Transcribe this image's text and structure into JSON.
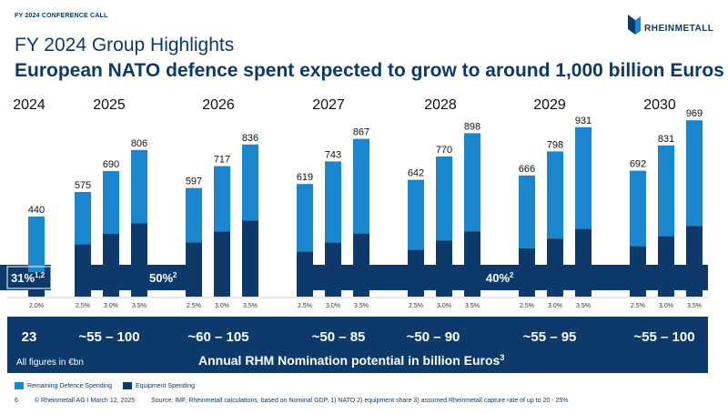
{
  "header": {
    "top_label": "FY 2024 CONFERENCE CALL",
    "logo_text": "RHEINMETALL",
    "title": "FY 2024 Group Highlights",
    "subtitle": "European NATO defence spent expected to grow to around 1,000 billion Euros"
  },
  "colors": {
    "remaining": "#1a86cf",
    "equipment": "#0d3a6b",
    "band": "#0d3a6b"
  },
  "chart_data": {
    "type": "bar",
    "stacked": true,
    "years": [
      "2024",
      "2025",
      "2026",
      "2027",
      "2028",
      "2029",
      "2030"
    ],
    "groups": [
      {
        "year": "2024",
        "rates": [
          "2.0%"
        ],
        "totals": [
          440
        ],
        "equipment": [
          135
        ],
        "nomination": "23"
      },
      {
        "year": "2025",
        "rates": [
          "2.5%",
          "3.0%",
          "3.5%"
        ],
        "totals": [
          575,
          690,
          806
        ],
        "equipment": [
          287,
          345,
          403
        ],
        "nomination": "~55 – 100"
      },
      {
        "year": "2026",
        "rates": [
          "2.5%",
          "3.0%",
          "3.5%"
        ],
        "totals": [
          597,
          717,
          836
        ],
        "equipment": [
          298,
          358,
          418
        ],
        "nomination": "~60 – 105"
      },
      {
        "year": "2027",
        "rates": [
          "2.5%",
          "3.0%",
          "3.5%"
        ],
        "totals": [
          619,
          743,
          867
        ],
        "equipment": [
          247,
          297,
          347
        ],
        "nomination": "~50 – 85"
      },
      {
        "year": "2028",
        "rates": [
          "2.5%",
          "3.0%",
          "3.5%"
        ],
        "totals": [
          642,
          770,
          898
        ],
        "equipment": [
          257,
          308,
          359
        ],
        "nomination": "~50 – 90"
      },
      {
        "year": "2029",
        "rates": [
          "2.5%",
          "3.0%",
          "3.5%"
        ],
        "totals": [
          666,
          798,
          931
        ],
        "equipment": [
          266,
          319,
          372
        ],
        "nomination": "~55 – 95"
      },
      {
        "year": "2030",
        "rates": [
          "2.5%",
          "3.0%",
          "3.5%"
        ],
        "totals": [
          692,
          831,
          969
        ],
        "equipment": [
          277,
          332,
          388
        ],
        "nomination": "~55 – 100"
      }
    ],
    "equipment_share_labels": [
      {
        "text": "31%",
        "sup": "1,2"
      },
      {
        "text": "50%",
        "sup": "2"
      },
      {
        "text": "40%",
        "sup": "2"
      }
    ],
    "series": [
      {
        "name": "Remaining Defence Spending"
      },
      {
        "name": "Equipment Spending"
      }
    ],
    "band_note": "All figures in €bn",
    "band_title": "Annual RHM Nomination potential in billion Euros",
    "band_title_sup": "3"
  },
  "footer": {
    "page": "6",
    "copyright": "© Rheinmetall AG I March 12, 2025",
    "source": "Source: IMF, Rheinmetall calculations; based on Nominal GDP, 1) NATO 2) equipment share 3) assumed Rheinmetall capture rate of up to 20 - 25%"
  }
}
